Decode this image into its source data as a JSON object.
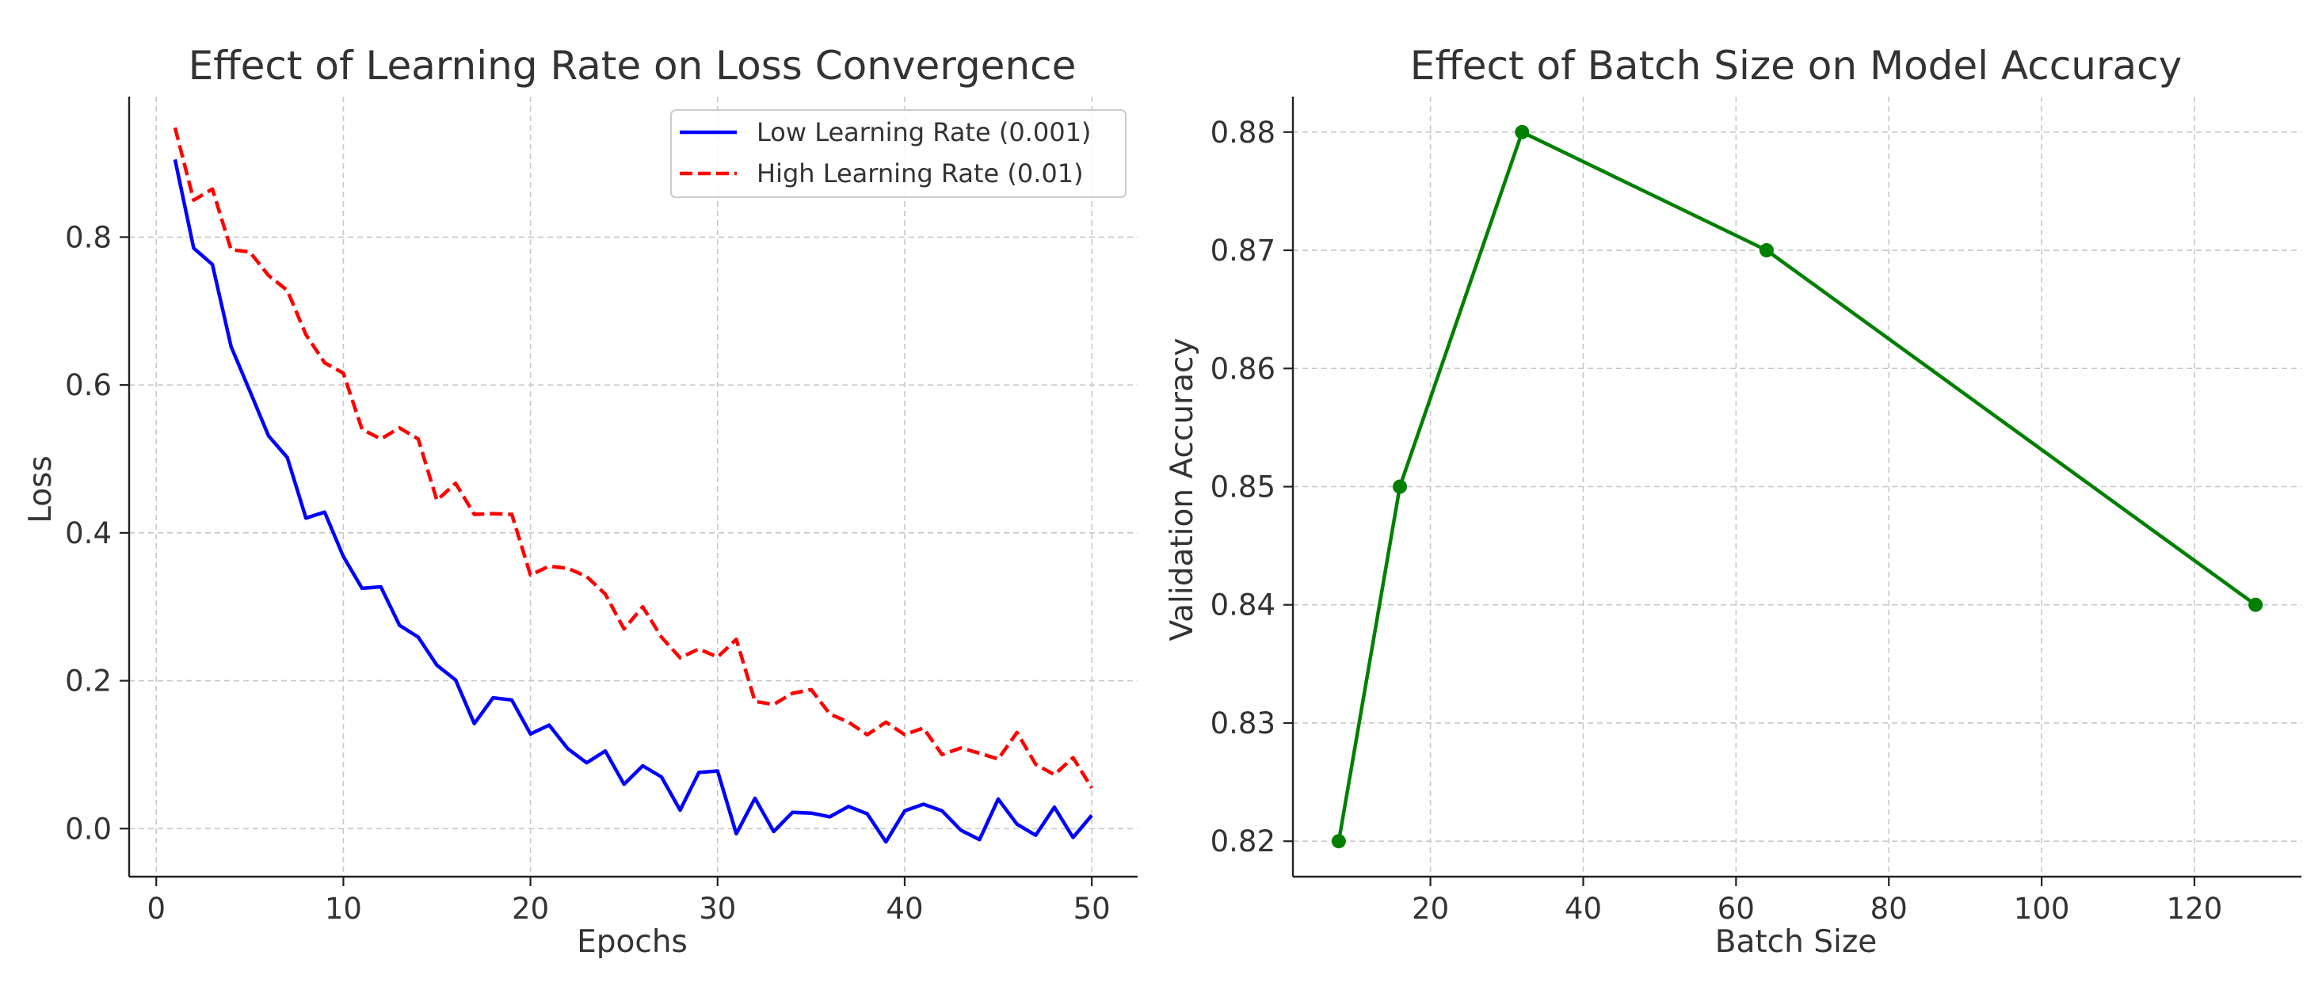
{
  "chart_data": [
    {
      "type": "line",
      "title": "Effect of Learning Rate on Loss Convergence",
      "xlabel": "Epochs",
      "ylabel": "Loss",
      "xlim": [
        -1.45,
        52.45
      ],
      "ylim": [
        -0.065,
        0.99
      ],
      "xticks": [
        0,
        10,
        20,
        30,
        40,
        50
      ],
      "yticks": [
        0.0,
        0.2,
        0.4,
        0.6,
        0.8
      ],
      "grid": true,
      "legend": "top-right",
      "x": [
        1,
        2,
        3,
        4,
        5,
        6,
        7,
        8,
        9,
        10,
        11,
        12,
        13,
        14,
        15,
        16,
        17,
        18,
        19,
        20,
        21,
        22,
        23,
        24,
        25,
        26,
        27,
        28,
        29,
        30,
        31,
        32,
        33,
        34,
        35,
        36,
        37,
        38,
        39,
        40,
        41,
        42,
        43,
        44,
        45,
        46,
        47,
        48,
        49,
        50
      ],
      "series": [
        {
          "name": "Low Learning Rate (0.001)",
          "color": "#0000ff",
          "style": "solid",
          "values": [
            0.905,
            0.785,
            0.763,
            0.652,
            0.592,
            0.531,
            0.502,
            0.42,
            0.428,
            0.368,
            0.325,
            0.327,
            0.275,
            0.259,
            0.221,
            0.201,
            0.142,
            0.177,
            0.174,
            0.128,
            0.14,
            0.108,
            0.089,
            0.105,
            0.06,
            0.085,
            0.07,
            0.025,
            0.076,
            0.078,
            -0.007,
            0.041,
            -0.004,
            0.022,
            0.021,
            0.016,
            0.03,
            0.02,
            -0.018,
            0.024,
            0.033,
            0.024,
            -0.002,
            -0.015,
            0.04,
            0.006,
            -0.009,
            0.029,
            -0.012,
            0.018
          ]
        },
        {
          "name": "High Learning Rate (0.01)",
          "color": "#ff0000",
          "style": "dashed",
          "values": [
            0.948,
            0.85,
            0.865,
            0.783,
            0.78,
            0.748,
            0.728,
            0.668,
            0.63,
            0.616,
            0.54,
            0.527,
            0.542,
            0.527,
            0.444,
            0.467,
            0.425,
            0.426,
            0.425,
            0.343,
            0.355,
            0.352,
            0.341,
            0.317,
            0.27,
            0.3,
            0.259,
            0.231,
            0.243,
            0.232,
            0.256,
            0.172,
            0.168,
            0.183,
            0.188,
            0.155,
            0.144,
            0.127,
            0.144,
            0.127,
            0.136,
            0.1,
            0.109,
            0.102,
            0.094,
            0.13,
            0.087,
            0.073,
            0.096,
            0.055
          ]
        }
      ]
    },
    {
      "type": "line",
      "title": "Effect of Batch Size on Model Accuracy",
      "xlabel": "Batch Size",
      "ylabel": "Validation Accuracy",
      "xlim": [
        2.0,
        134.0
      ],
      "ylim": [
        0.817,
        0.883
      ],
      "xticks": [
        20,
        40,
        60,
        80,
        100,
        120
      ],
      "yticks": [
        0.82,
        0.83,
        0.84,
        0.85,
        0.86,
        0.87,
        0.88
      ],
      "grid": true,
      "x": [
        8,
        16,
        32,
        64,
        128
      ],
      "series": [
        {
          "color": "#008000",
          "style": "solid-marker",
          "values": [
            0.82,
            0.85,
            0.88,
            0.87,
            0.84
          ]
        }
      ]
    }
  ]
}
